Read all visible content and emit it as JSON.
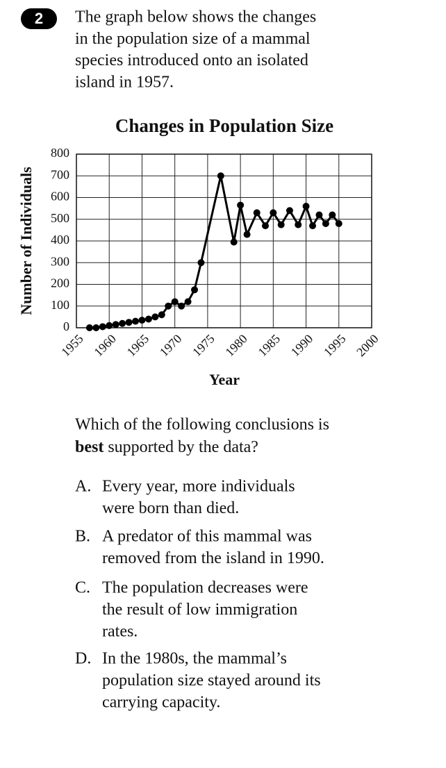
{
  "question_number": "2",
  "prompt_lines": [
    "The graph below shows the changes",
    "in the population size of a mammal",
    "species introduced onto an isolated",
    "island in 1957."
  ],
  "chart_data": {
    "type": "line",
    "title": "Changes in Population Size",
    "x_label": "Year",
    "y_label": "Number of Individuals",
    "x": [
      1957,
      1958,
      1959,
      1960,
      1961,
      1962,
      1963,
      1964,
      1965,
      1966,
      1967,
      1968,
      1969,
      1970,
      1971,
      1972,
      1973,
      1974,
      1977,
      1979,
      1980,
      1981,
      1982.5,
      1983.8,
      1985,
      1986.2,
      1987.5,
      1988.8,
      1990,
      1991,
      1992,
      1993,
      1994,
      1995
    ],
    "series": [
      {
        "name": "Population",
        "color": "#000000",
        "values": [
          0,
          0,
          5,
          10,
          15,
          20,
          25,
          30,
          35,
          40,
          50,
          60,
          100,
          120,
          100,
          120,
          175,
          300,
          700,
          395,
          565,
          430,
          530,
          470,
          530,
          475,
          540,
          475,
          560,
          470,
          520,
          480,
          520,
          480
        ]
      }
    ],
    "xlim": [
      1955,
      2000
    ],
    "xticks": [
      1955,
      1960,
      1965,
      1970,
      1975,
      1980,
      1985,
      1990,
      1995,
      2000
    ],
    "ylim": [
      0,
      800
    ],
    "yticks": [
      0,
      100,
      200,
      300,
      400,
      500,
      600,
      700,
      800
    ],
    "grid": true
  },
  "question": {
    "line1": "Which of the following conclusions is",
    "bold": "best",
    "after": " supported by the data?"
  },
  "options": [
    {
      "letter": "A.",
      "lines": [
        "Every year, more individuals",
        "were born than died."
      ]
    },
    {
      "letter": "B.",
      "lines": [
        "A predator of this mammal was",
        "removed from the island in 1990."
      ]
    },
    {
      "letter": "C.",
      "lines": [
        "The population decreases were",
        "the result of low immigration",
        "rates."
      ]
    },
    {
      "letter": "D.",
      "lines": [
        "In the 1980s, the mammal’s",
        "population size stayed around its",
        "carrying capacity."
      ]
    }
  ]
}
